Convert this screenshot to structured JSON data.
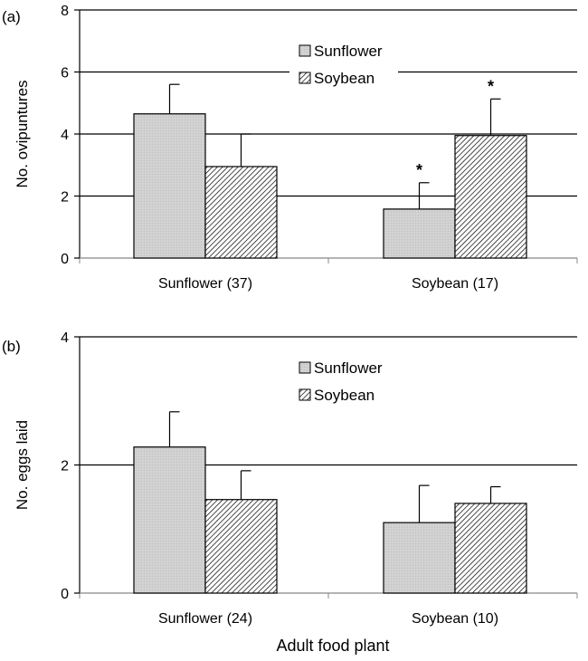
{
  "xlabel": "Adult food plant",
  "colors": {
    "sunflower": "#d4d4d4",
    "soybean_hatch": "#000000",
    "axis": "#000000"
  },
  "chart_data": [
    {
      "panel": "(a)",
      "type": "bar",
      "ylabel": "No. ovipuntures",
      "ylim": [
        0,
        8
      ],
      "yticks": [
        0,
        2,
        4,
        6,
        8
      ],
      "gridlines": [
        2,
        4,
        6,
        8
      ],
      "categories": [
        "Sunflower (37)",
        "Soybean (17)"
      ],
      "legend": {
        "placement": "top-center",
        "entries": [
          "Sunflower",
          "Soybean"
        ]
      },
      "series": [
        {
          "name": "Sunflower",
          "values": [
            4.65,
            1.58
          ],
          "errors": [
            0.95,
            0.85
          ],
          "marks": [
            "",
            "*"
          ]
        },
        {
          "name": "Soybean",
          "values": [
            2.95,
            3.95
          ],
          "errors": [
            1.05,
            1.18
          ],
          "marks": [
            "",
            "*"
          ]
        }
      ]
    },
    {
      "panel": "(b)",
      "type": "bar",
      "ylabel": "No. eggs laid",
      "ylim": [
        0,
        4
      ],
      "yticks": [
        0,
        2,
        4
      ],
      "gridlines": [
        2,
        4
      ],
      "categories": [
        "Sunflower (24)",
        "Soybean (10)"
      ],
      "legend": {
        "placement": "top-center",
        "entries": [
          "Sunflower",
          "Soybean"
        ]
      },
      "series": [
        {
          "name": "Sunflower",
          "values": [
            2.28,
            1.1
          ],
          "errors": [
            0.55,
            0.58
          ],
          "marks": [
            "",
            ""
          ]
        },
        {
          "name": "Soybean",
          "values": [
            1.46,
            1.4
          ],
          "errors": [
            0.45,
            0.26
          ],
          "marks": [
            "",
            ""
          ]
        }
      ]
    }
  ]
}
